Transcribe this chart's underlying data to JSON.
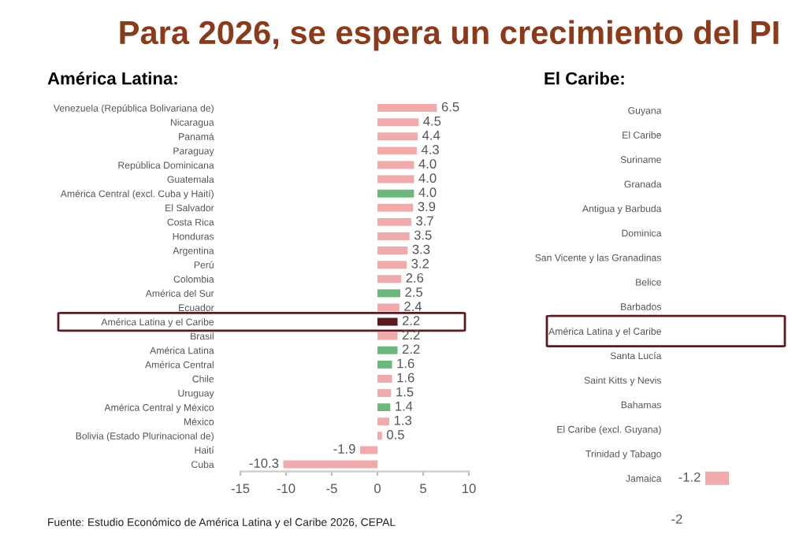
{
  "chart_data": [
    {
      "type": "bar",
      "orientation": "horizontal",
      "title": "Para 2026, se espera un crecimiento del PI",
      "subtitle": "América Latina:",
      "categories": [
        "Venezuela (República Bolivariana de)",
        "Nicaragua",
        "Panamá",
        "Paraguay",
        "República Dominicana",
        "Guatemala",
        "América Central (excl. Cuba y Haití)",
        "El Salvador",
        "Costa Rica",
        "Honduras",
        "Argentina",
        "Perú",
        "Colombia",
        "América del Sur",
        "Ecuador",
        "América Latina y el Caribe",
        "Brasil",
        "América Latina",
        "América Central",
        "Chile",
        "Uruguay",
        "América Central y México",
        "México",
        "Bolivia (Estado Plurinacional de)",
        "Haití",
        "Cuba"
      ],
      "values": [
        6.5,
        4.5,
        4.4,
        4.3,
        4.0,
        4.0,
        4.0,
        3.9,
        3.7,
        3.5,
        3.3,
        3.2,
        2.6,
        2.5,
        2.4,
        2.2,
        2.2,
        2.2,
        1.6,
        1.6,
        1.5,
        1.4,
        1.3,
        0.5,
        -1.9,
        -10.3
      ],
      "value_labels": [
        "6.5",
        "4.5",
        "4.4",
        "4.3",
        "4.0",
        "4.0",
        "4.0",
        "3.9",
        "3.7",
        "3.5",
        "3.3",
        "3.2",
        "2.6",
        "2.5",
        "2.4",
        "2.2",
        "2.2",
        "2.2",
        "1.6",
        "1.6",
        "1.5",
        "1.4",
        "1.3",
        "0.5",
        "-1.9",
        "-10.3"
      ],
      "colors": [
        "#f2a9aa",
        "#f2a9aa",
        "#f2a9aa",
        "#f2a9aa",
        "#f2a9aa",
        "#f2a9aa",
        "#6cb87c",
        "#f2a9aa",
        "#f2a9aa",
        "#f2a9aa",
        "#f2a9aa",
        "#f2a9aa",
        "#f2a9aa",
        "#6cb87c",
        "#f2a9aa",
        "#5b1a20",
        "#f2a9aa",
        "#6cb87c",
        "#6cb87c",
        "#f2a9aa",
        "#f2a9aa",
        "#6cb87c",
        "#f2a9aa",
        "#f2a9aa",
        "#f2a9aa",
        "#f2a9aa"
      ],
      "xlim": [
        -15,
        10
      ],
      "xticks": [
        {
          "value": -15,
          "label": "-15"
        },
        {
          "value": -10,
          "label": "-10"
        },
        {
          "value": -5,
          "label": "-5"
        },
        {
          "value": 0,
          "label": "0"
        },
        {
          "value": 5,
          "label": "5"
        },
        {
          "value": 10,
          "label": "10"
        }
      ],
      "grid": false,
      "legend": false,
      "annotations": [
        "Fuente: Estudio Económico de América Latina y el Caribe 2026, CEPAL"
      ]
    },
    {
      "type": "bar",
      "orientation": "horizontal",
      "title": "El Caribe:",
      "categories": [
        "Guyana",
        "El Caribe",
        "Suriname",
        "Granada",
        "Antigua y Barbuda",
        "Dominica",
        "San Vicente y las Granadinas",
        "Belice",
        "Barbados",
        "América Latina y el Caribe",
        "Santa Lucía",
        "Saint Kitts y Nevis",
        "Bahamas",
        "El Caribe (excl. Guyana)",
        "Trinidad y Tabago",
        "Jamaica"
      ],
      "values": [
        null,
        null,
        null,
        null,
        null,
        null,
        null,
        null,
        null,
        null,
        null,
        null,
        null,
        null,
        null,
        -1.2
      ],
      "value_labels": [
        null,
        null,
        null,
        null,
        null,
        null,
        null,
        null,
        null,
        null,
        null,
        null,
        null,
        null,
        null,
        "-1.2"
      ],
      "colors": [
        "#f2a9aa",
        "#f2a9aa",
        "#f2a9aa",
        "#f2a9aa",
        "#f2a9aa",
        "#f2a9aa",
        "#f2a9aa",
        "#f2a9aa",
        "#f2a9aa",
        "#5b1a20",
        "#f2a9aa",
        "#f2a9aa",
        "#f2a9aa",
        "#f2a9aa",
        "#f2a9aa",
        "#f2a9aa"
      ],
      "grid": false,
      "legend": false,
      "annotations": [
        "-2"
      ]
    }
  ]
}
